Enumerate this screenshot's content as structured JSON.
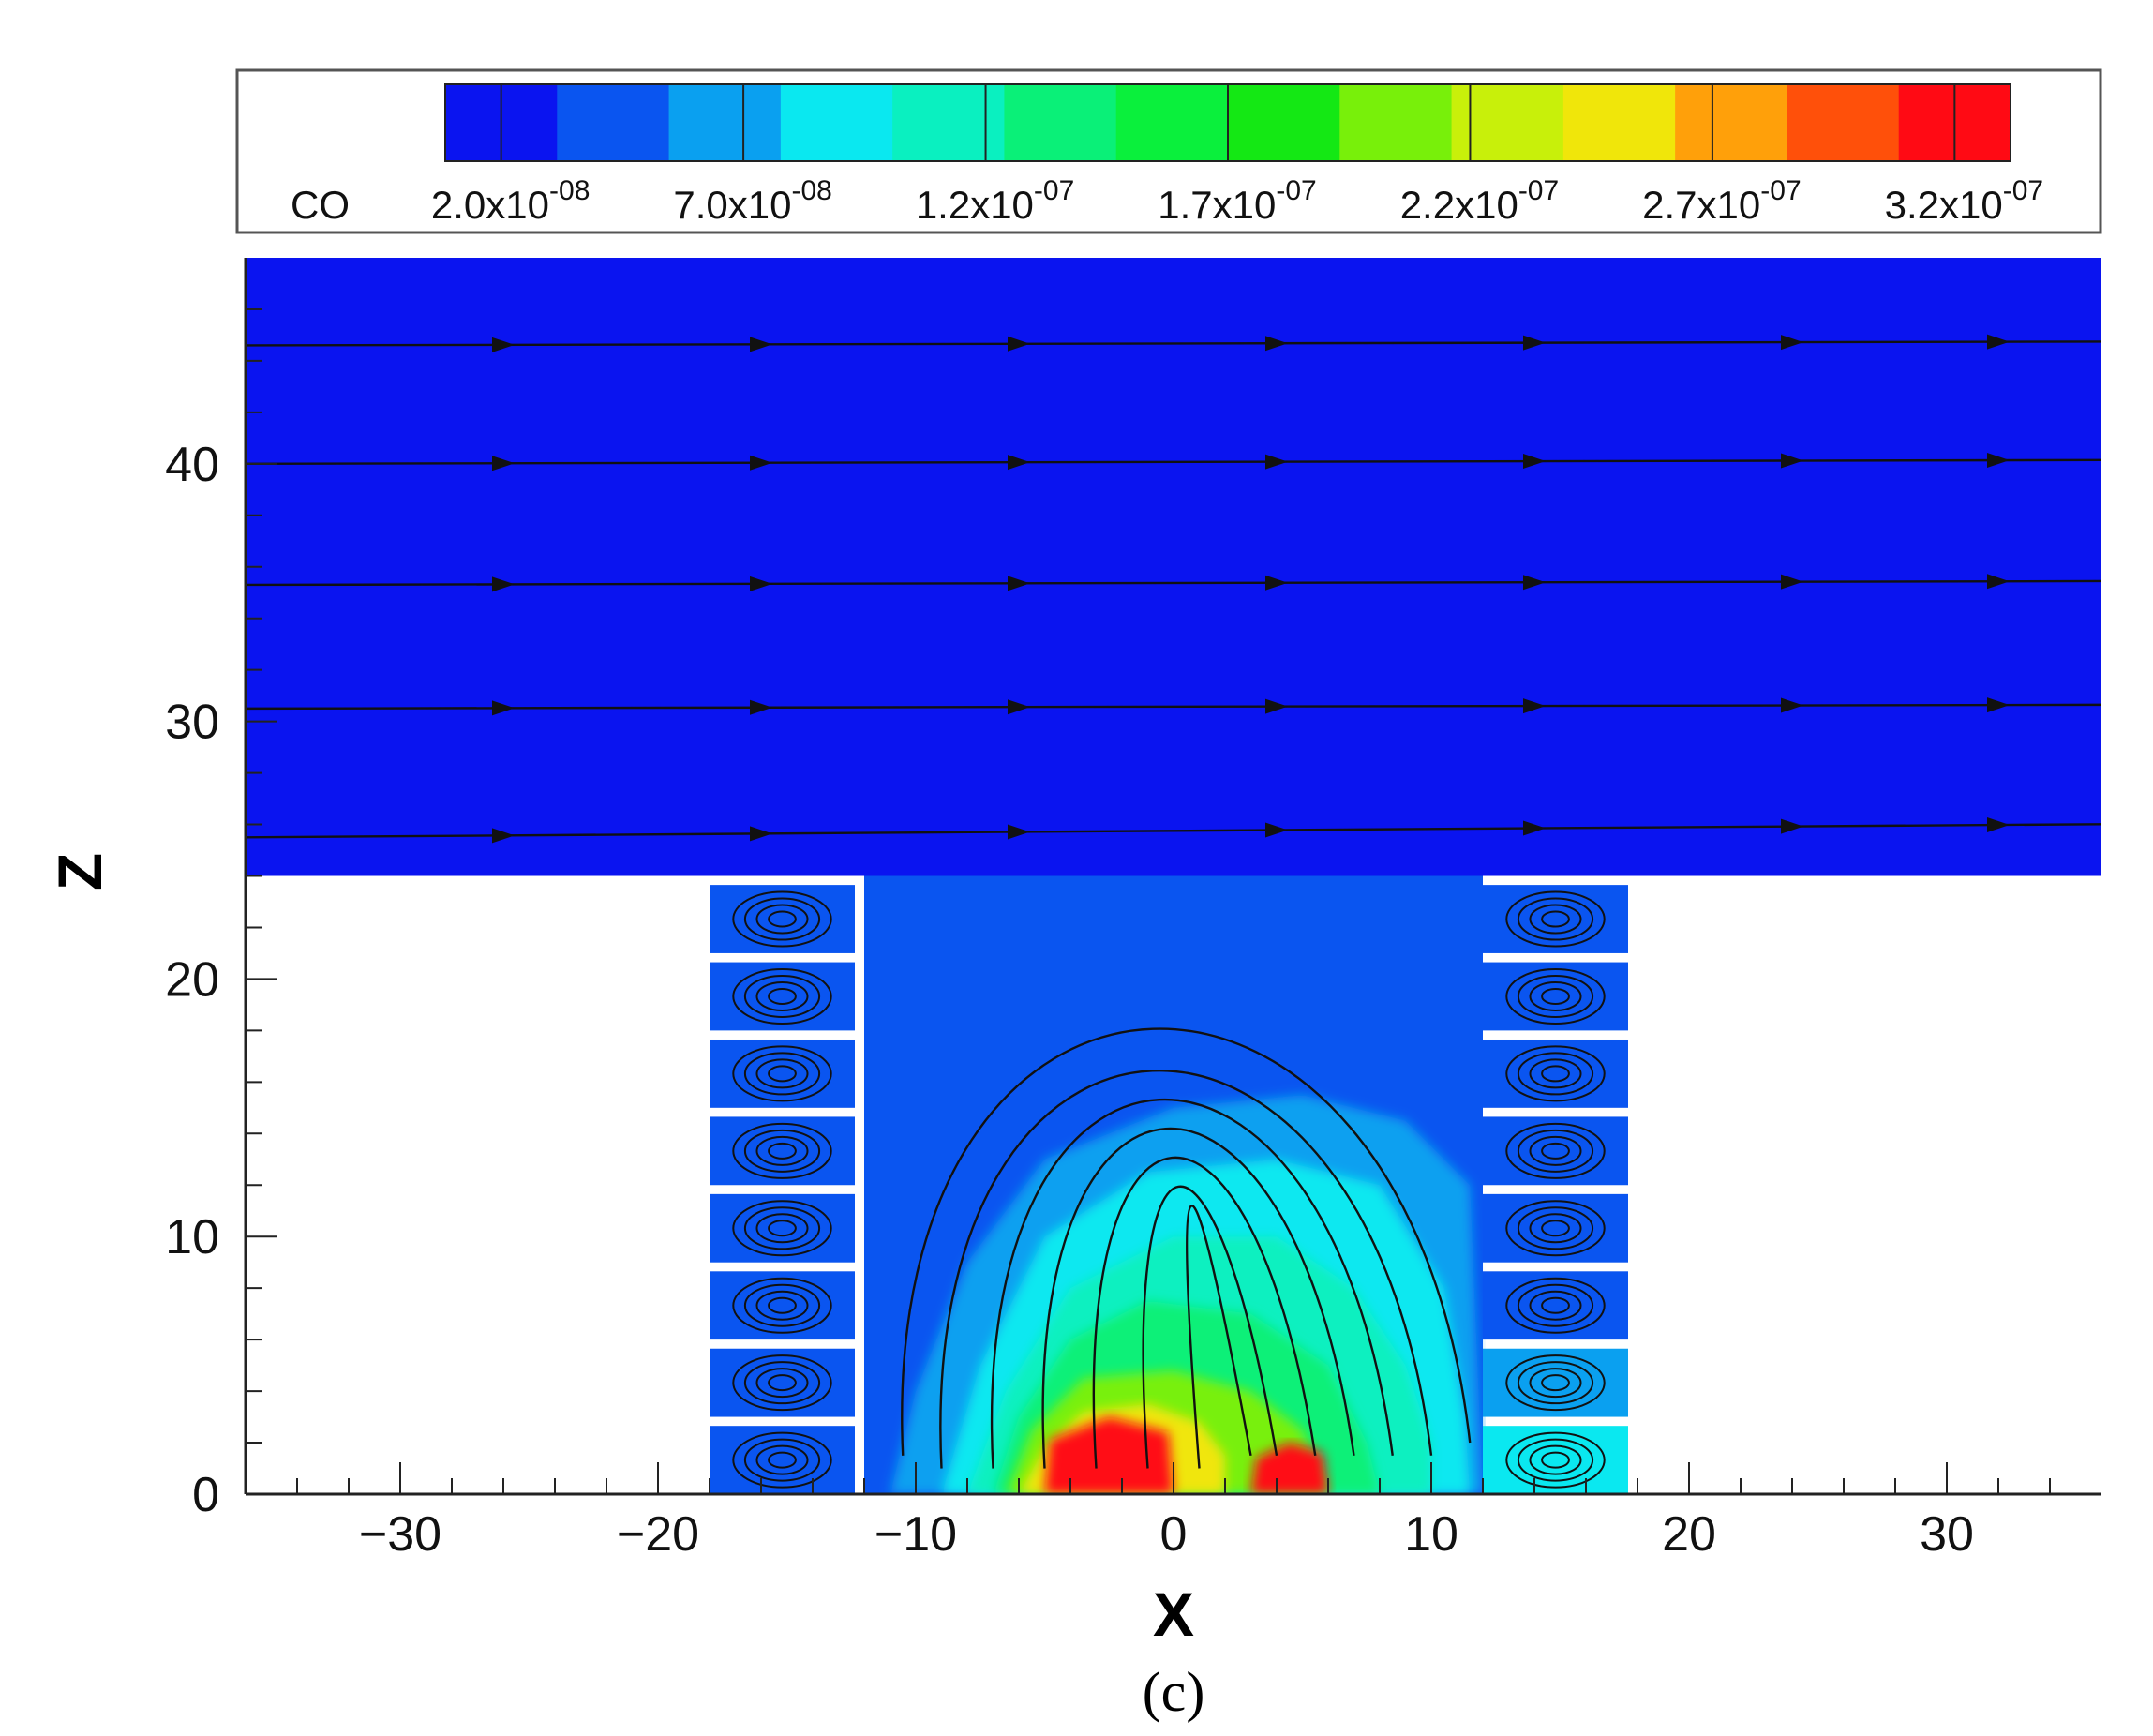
{
  "chart_data": {
    "type": "heatmap",
    "subtype": "contour-with-streamlines",
    "title": "",
    "xlabel": "X",
    "ylabel": "Z",
    "caption": "(c)",
    "xlim": [
      -36,
      36
    ],
    "ylim": [
      0,
      48
    ],
    "x_ticks": [
      -30,
      -20,
      -10,
      0,
      10,
      20,
      30
    ],
    "x_tick_labels": [
      "−30",
      "−20",
      "−10",
      "0",
      "10",
      "20",
      "30"
    ],
    "y_ticks": [
      0,
      10,
      20,
      30,
      40
    ],
    "y_tick_labels": [
      "0",
      "10",
      "20",
      "30",
      "40"
    ],
    "colorbar": {
      "variable": "CO",
      "levels": [
        2e-08,
        4.5e-08,
        7e-08,
        9.5e-08,
        1.2e-07,
        1.45e-07,
        1.7e-07,
        1.95e-07,
        2.2e-07,
        2.45e-07,
        2.7e-07,
        2.95e-07,
        3.2e-07
      ],
      "colors": [
        "#0a14f0",
        "#0a55f0",
        "#0aa0f0",
        "#0ae8f0",
        "#0af0c0",
        "#0af078",
        "#0af03c",
        "#14e814",
        "#78f00a",
        "#c8f00a",
        "#f0e60a",
        "#ffa00a",
        "#ff500a",
        "#ff0a14"
      ],
      "labels": [
        {
          "value": 2e-08,
          "mantissa": "2.0x10",
          "exponent": "-08"
        },
        {
          "value": 7e-08,
          "mantissa": "7.0x10",
          "exponent": "-08"
        },
        {
          "value": 1.2e-07,
          "mantissa": "1.2x10",
          "exponent": "-07"
        },
        {
          "value": 1.7e-07,
          "mantissa": "1.7x10",
          "exponent": "-07"
        },
        {
          "value": 2.2e-07,
          "mantissa": "2.2x10",
          "exponent": "-07"
        },
        {
          "value": 2.7e-07,
          "mantissa": "2.7x10",
          "exponent": "-07"
        },
        {
          "value": 3.2e-07,
          "mantissa": "3.2x10",
          "exponent": "-07"
        }
      ]
    },
    "domain": {
      "upper_region": {
        "x": [
          -36,
          36
        ],
        "z": [
          24,
          48
        ],
        "co_level": 2e-08
      },
      "street_canyon": {
        "x": [
          -12,
          12
        ],
        "z": [
          0,
          24
        ]
      },
      "left_building": {
        "x": [
          -18,
          -12
        ],
        "z": [
          0,
          24
        ],
        "floors": 8
      },
      "right_building": {
        "x": [
          12,
          18
        ],
        "z": [
          0,
          24
        ],
        "floors": 8
      }
    },
    "free_stream_lines_z": [
      25.5,
      30.5,
      35.3,
      40,
      44.6
    ],
    "peak_regions": [
      {
        "x": [
          -5,
          0
        ],
        "z": [
          0,
          3
        ],
        "co_level": 3.2e-07
      },
      {
        "x": [
          3,
          6
        ],
        "z": [
          0,
          2
        ],
        "co_level": 3.2e-07
      }
    ],
    "grid": false
  }
}
